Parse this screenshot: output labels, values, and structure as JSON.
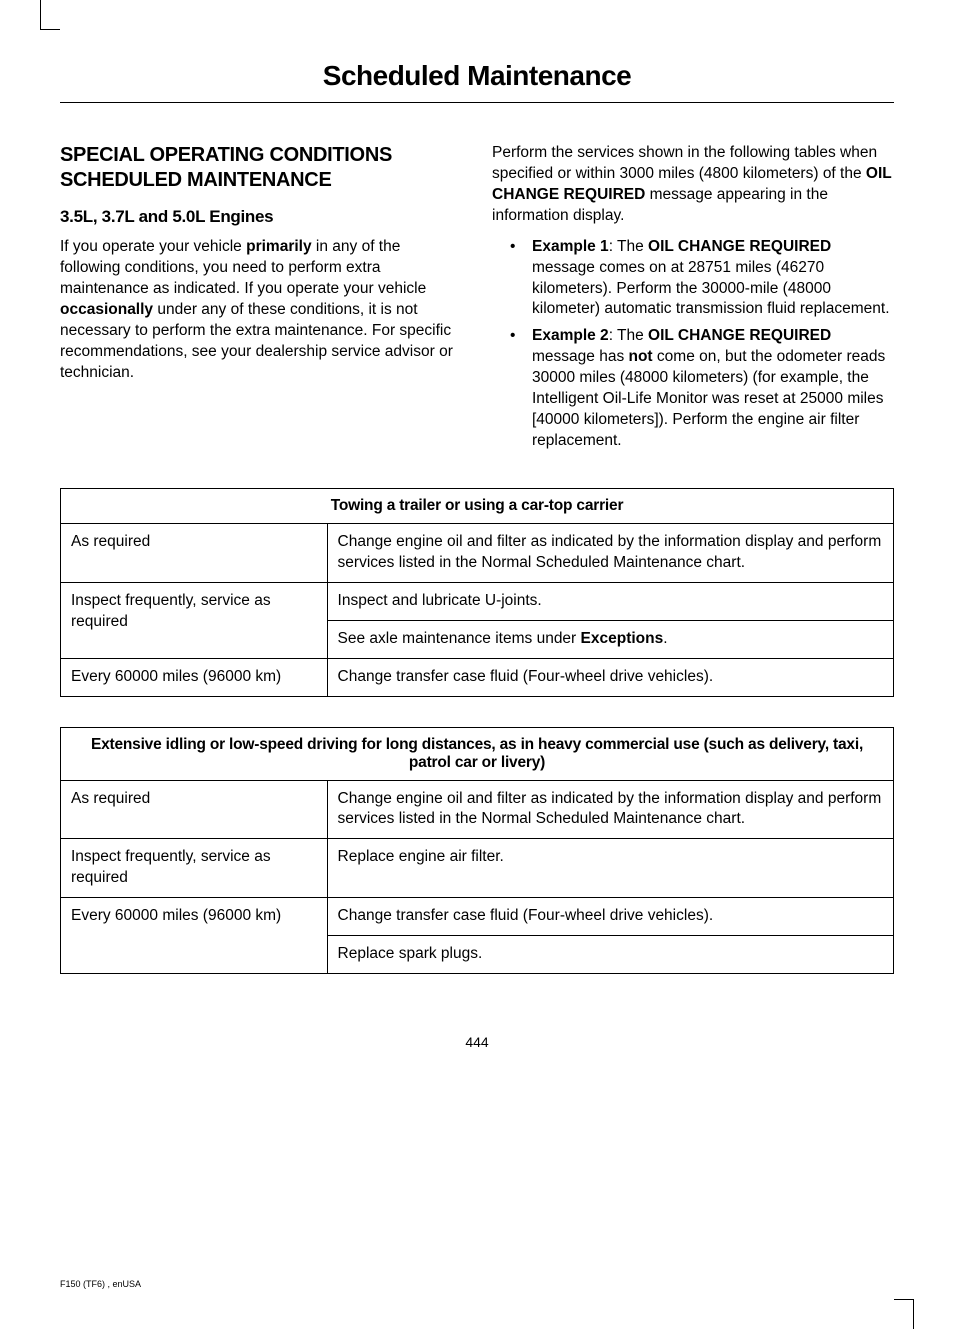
{
  "page_title": "Scheduled Maintenance",
  "section_heading": "SPECIAL OPERATING CONDITIONS SCHEDULED MAINTENANCE",
  "sub_heading": "3.5L, 3.7L and 5.0L Engines",
  "left_para_pre": "If you operate your vehicle ",
  "left_para_bold1": "primarily",
  "left_para_mid": " in any of the following conditions, you need to perform extra maintenance as indicated. If you operate your vehicle ",
  "left_para_bold2": "occasionally",
  "left_para_post": " under any of these conditions, it is not necessary to perform the extra maintenance. For specific recommendations, see your dealership service advisor or technician.",
  "right_para_pre": "Perform the services shown in the following tables when specified or within 3000 miles (4800 kilometers) of the ",
  "right_para_bold": "OIL CHANGE REQUIRED",
  "right_para_post": " message appearing in the information display.",
  "ex1_label": "Example 1",
  "ex1_pre": ": The ",
  "ex1_bold": "OIL CHANGE REQUIRED",
  "ex1_post": " message comes on at 28751 miles (46270 kilometers). Perform the 30000-mile (48000 kilometer) automatic transmission fluid replacement.",
  "ex2_label": "Example 2",
  "ex2_pre": ": The ",
  "ex2_bold": "OIL CHANGE REQUIRED",
  "ex2_mid": " message has ",
  "ex2_bold2": "not",
  "ex2_post": " come on, but the odometer reads 30000 miles (48000 kilometers) (for example, the Intelligent Oil-Life Monitor was reset at 25000 miles [40000 kilometers]). Perform the engine air filter replacement.",
  "table1": {
    "header": "Towing a trailer or using a car-top carrier",
    "r1c1": "As required",
    "r1c2": "Change engine oil and filter as indicated by the information display and perform services listed in the Normal Scheduled Maintenance chart.",
    "r2c1": "Inspect frequently, service as required",
    "r2c2": "Inspect and lubricate U-joints.",
    "r3c2_pre": "See axle maintenance items under ",
    "r3c2_bold": "Exceptions",
    "r3c2_post": ".",
    "r4c1": "Every 60000 miles (96000 km)",
    "r4c2": "Change transfer case fluid (Four-wheel drive vehicles)."
  },
  "table2": {
    "header": "Extensive idling or low-speed driving for long distances, as in heavy commercial use (such as delivery, taxi, patrol car or livery)",
    "r1c1": "As required",
    "r1c2": "Change engine oil and filter as indicated by the information display and perform services listed in the Normal Scheduled Maintenance chart.",
    "r2c1": "Inspect frequently, service as required",
    "r2c2": "Replace engine air filter.",
    "r3c1": "Every 60000 miles (96000 km)",
    "r3c2": "Change transfer case fluid (Four-wheel drive vehicles).",
    "r4c2": "Replace spark plugs."
  },
  "page_number": "444",
  "footer": "F150 (TF6) , enUSA"
}
